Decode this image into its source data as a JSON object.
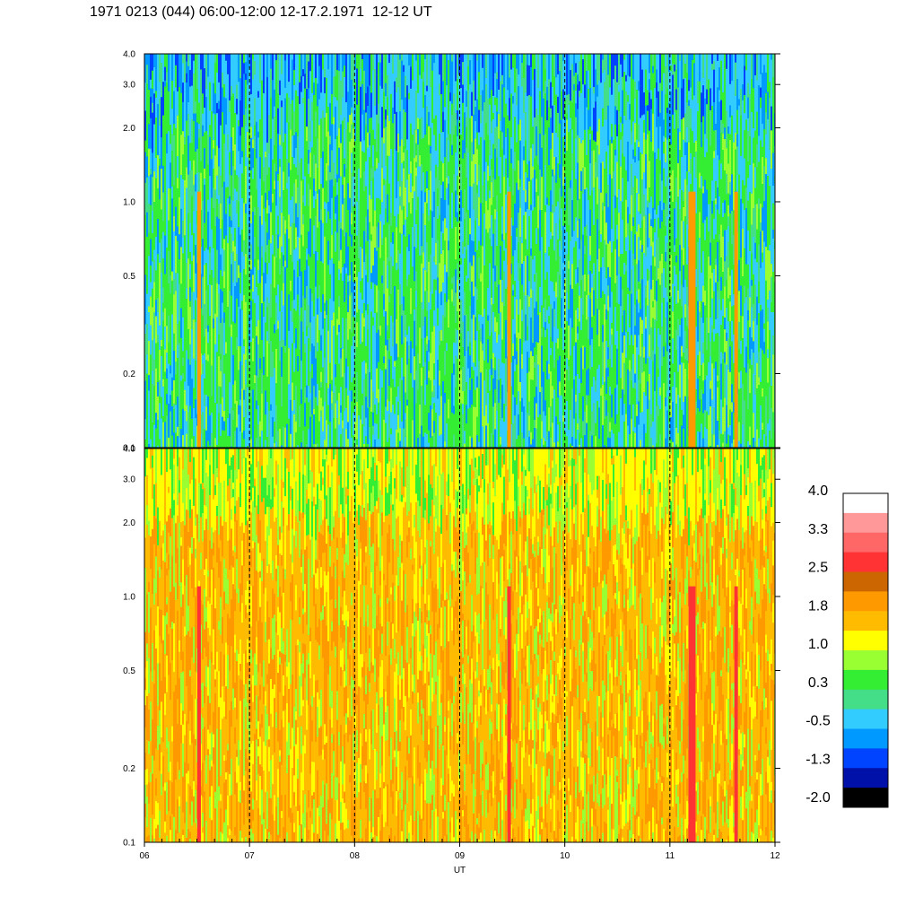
{
  "title": "1971 0213 (044) 06:00-12:00 12-17.2.1971  12-12 UT",
  "chart_data": [
    {
      "type": "heatmap",
      "panel": "upper",
      "description_source": "spectrogram",
      "x": {
        "label": "",
        "ticks": [
          "06",
          "07",
          "08",
          "09",
          "10",
          "11",
          "12"
        ],
        "range": [
          6,
          12
        ],
        "unit_hours": true
      },
      "y": {
        "label": "",
        "scale": "log",
        "range": [
          0.1,
          4.0
        ],
        "ticks": [
          0.1,
          0.2,
          0.5,
          1.0,
          2.0,
          3.0,
          4.0
        ],
        "tick_labels": [
          "0.1",
          "0.2",
          "0.5",
          "1.0",
          "2.0",
          "3.0",
          "4.0"
        ]
      },
      "grid": "dashed vertical lines at each hour",
      "bursts_hours": [
        6.52,
        9.47,
        11.21,
        11.63
      ],
      "dominant_levels": [
        "green",
        "light-blue",
        "blue"
      ]
    },
    {
      "type": "heatmap",
      "panel": "lower",
      "x": {
        "label": "UT",
        "ticks": [
          "06",
          "07",
          "08",
          "09",
          "10",
          "11",
          "12"
        ],
        "range": [
          6,
          12
        ]
      },
      "y": {
        "label": "",
        "scale": "log",
        "range": [
          0.1,
          4.0
        ],
        "ticks": [
          0.1,
          0.2,
          0.5,
          1.0,
          2.0,
          3.0,
          4.0
        ],
        "tick_labels": [
          "0.1",
          "0.2",
          "0.5",
          "1.0",
          "2.0",
          "3.0",
          "4.0"
        ]
      },
      "grid": "dashed vertical lines at each hour",
      "bursts_hours": [
        6.52,
        9.47,
        11.21,
        11.63
      ],
      "dominant_levels": [
        "orange",
        "yellow",
        "green"
      ]
    }
  ],
  "colorbar": {
    "labels": [
      "4.0",
      "3.3",
      "2.5",
      "1.8",
      "1.0",
      "0.3",
      "-0.5",
      "-1.3",
      "-2.0"
    ],
    "colors": [
      "#ffffff",
      "#ff9999",
      "#ff6666",
      "#ff3333",
      "#cc6600",
      "#ff9900",
      "#ffbb00",
      "#ffff00",
      "#99ff33",
      "#33ee33",
      "#44dd88",
      "#33ccff",
      "#0099ff",
      "#0044ff",
      "#0011aa",
      "#000000"
    ]
  }
}
